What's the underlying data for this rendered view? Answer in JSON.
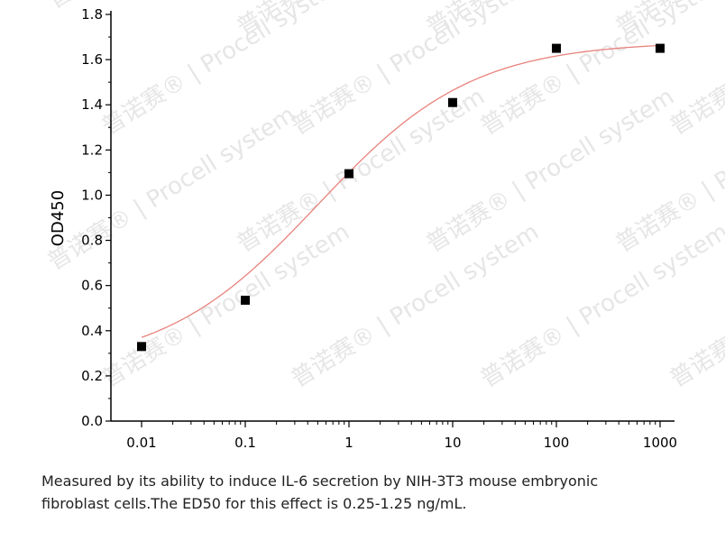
{
  "chart_data": {
    "type": "scatter",
    "ylabel": "OD450",
    "xlabel": "",
    "x_scale": "log",
    "xlim": [
      0.01,
      1000
    ],
    "ylim": [
      0.0,
      1.8
    ],
    "x_ticks": [
      "0.01",
      "0.1",
      "1",
      "10",
      "100",
      "1000"
    ],
    "y_ticks": [
      "0.0",
      "0.2",
      "0.4",
      "0.6",
      "0.8",
      "1.0",
      "1.2",
      "1.4",
      "1.6",
      "1.8"
    ],
    "series": [
      {
        "type": "scatter",
        "marker": "square",
        "color": "#000000",
        "x": [
          0.01,
          0.1,
          1,
          10,
          100,
          1000
        ],
        "y": [
          0.33,
          0.535,
          1.095,
          1.41,
          1.65,
          1.65
        ]
      },
      {
        "type": "line",
        "fit": "four-parameter logistic",
        "color": "#e8827c",
        "params": {
          "bottom": 0.235,
          "top": 1.68,
          "ec50": 0.5,
          "hill": 0.58
        }
      }
    ],
    "grid": false
  },
  "caption": {
    "line1": "Measured by its ability to induce IL-6 secretion by NIH-3T3 mouse embryonic",
    "line2": "fibroblast cells.The ED50 for this effect is 0.25-1.25 ng/mL."
  },
  "watermark": {
    "text": "普诺赛® | Procell system",
    "color": "#e6e6e6"
  }
}
